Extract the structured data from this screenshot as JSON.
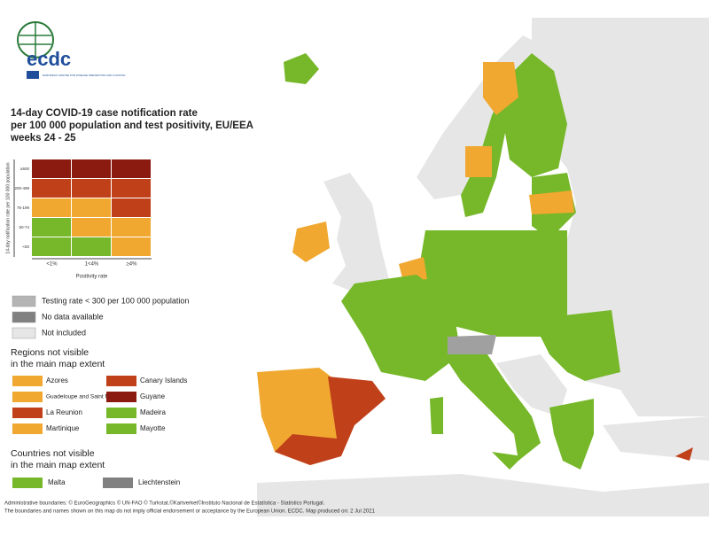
{
  "logo": {
    "name": "ecdc",
    "subtitle": "EUROPEAN CENTRE FOR DISEASE PREVENTION AND CONTROL"
  },
  "title": [
    "14-day COVID-19 case notification rate",
    "per 100 000 population and test positivity, EU/EEA",
    "weeks 24 - 25"
  ],
  "matrix": {
    "y_label": "14-day notification rate per 100 000 population",
    "rows": [
      "≥500",
      "200-499",
      "75-199",
      "50-74",
      "<50"
    ],
    "columns": [
      "<1%",
      "1<4%",
      "≥4%"
    ],
    "x_label": "Positivity rate",
    "colors": [
      [
        "#8b1a10",
        "#8b1a10",
        "#8b1a10"
      ],
      [
        "#c0401a",
        "#c0401a",
        "#c0401a"
      ],
      [
        "#f0a830",
        "#f0a830",
        "#c0401a"
      ],
      [
        "#76b82a",
        "#f0a830",
        "#f0a830"
      ],
      [
        "#76b82a",
        "#76b82a",
        "#f0a830"
      ]
    ]
  },
  "legend": [
    {
      "label": "Testing rate < 300 per 100 000 population",
      "color": "#b4b4b4"
    },
    {
      "label": "No data available",
      "color": "#808080"
    },
    {
      "label": "Not included",
      "color": "#e6e6e6"
    }
  ],
  "regions_heading": [
    "Regions not visible",
    "in the main map extent"
  ],
  "regions": [
    {
      "label": "Azores",
      "color": "#f0a830"
    },
    {
      "label": "Canary Islands",
      "color": "#c0401a"
    },
    {
      "label": "Guadeloupe and Saint Martin",
      "color": "#f0a830"
    },
    {
      "label": "Guyane",
      "color": "#8b1a10"
    },
    {
      "label": "La Reunion",
      "color": "#c0401a"
    },
    {
      "label": "Madeira",
      "color": "#76b82a"
    },
    {
      "label": "Martinique",
      "color": "#f0a830"
    },
    {
      "label": "Mayotte",
      "color": "#76b82a"
    }
  ],
  "countries_heading": [
    "Countries not visible",
    "in the main map extent"
  ],
  "countries": [
    {
      "label": "Malta",
      "color": "#76b82a"
    },
    {
      "label": "Liechtenstein",
      "color": "#808080"
    }
  ],
  "footer": [
    "Administrative boundaries: © EuroGeographics © UN-FAO © Turkstat.©Kartverket©Instituto Nacional de Estatística - Statistics Portugal.",
    "The boundaries and names shown on this map do not imply official endorsement or acceptance by the European Union. ECDC. Map produced on: 2 Jul 2021"
  ]
}
